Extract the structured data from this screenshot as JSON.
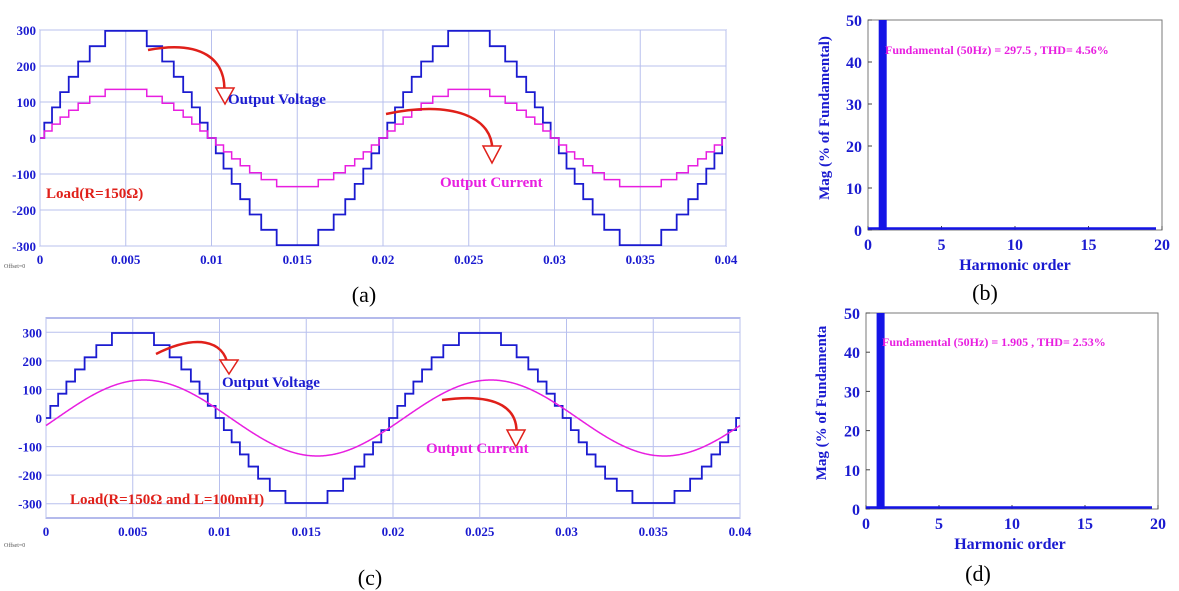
{
  "captions": [
    "(a)",
    "(b)",
    "(c)",
    "(d)"
  ],
  "colors": {
    "voltage": "#1b1bd0",
    "current": "#e81ee0",
    "arrow": "#e0201a",
    "axis_text": "#1a1ad0",
    "grid": "#b8c0ee",
    "spectrum": "#1414e6"
  },
  "chart_data": [
    {
      "id": "a",
      "type": "line",
      "x_ticks": [
        "0",
        "0.005",
        "0.01",
        "0.015",
        "0.02",
        "0.025",
        "0.03",
        "0.035",
        "0.04"
      ],
      "y_ticks": [
        "300",
        "200",
        "100",
        "0",
        "-100",
        "-200",
        "-300"
      ],
      "xlim": [
        0,
        0.04
      ],
      "ylim": [
        -300,
        300
      ],
      "offset_label": "Offset=0",
      "series": [
        {
          "name": "Output Voltage",
          "waveform": "staircase sine",
          "amplitude": 297.5,
          "frequency_hz": 50,
          "levels": 15
        },
        {
          "name": "Output Current",
          "waveform": "staircase sine",
          "amplitude": 135,
          "frequency_hz": 50,
          "levels": 15
        }
      ],
      "annotations": [
        "Output Voltage",
        "Output Current",
        "Load(R=150Ω)"
      ]
    },
    {
      "id": "b",
      "type": "bar",
      "xlabel": "Harmonic order",
      "ylabel": "Mag (% of Fundamental)",
      "x_ticks": [
        "0",
        "5",
        "10",
        "15",
        "20"
      ],
      "y_ticks": [
        "50",
        "40",
        "30",
        "20",
        "10",
        "0"
      ],
      "xlim": [
        0,
        20
      ],
      "ylim": [
        0,
        50
      ],
      "bars": [
        {
          "harmonic": 1,
          "value": 50
        }
      ],
      "annotation": "Fundamental (50Hz) = 297.5 , THD= 4.56%"
    },
    {
      "id": "c",
      "type": "line",
      "x_ticks": [
        "0",
        "0.005",
        "0.01",
        "0.015",
        "0.02",
        "0.025",
        "0.03",
        "0.035",
        "0.04"
      ],
      "y_ticks": [
        "300",
        "200",
        "100",
        "0",
        "-100",
        "-200",
        "-300"
      ],
      "xlim": [
        0,
        0.04
      ],
      "ylim": [
        -350,
        350
      ],
      "offset_label": "Offset=0",
      "series": [
        {
          "name": "Output Voltage",
          "waveform": "staircase sine",
          "amplitude": 297.5,
          "frequency_hz": 50,
          "levels": 15
        },
        {
          "name": "Output Current",
          "waveform": "sine",
          "amplitude": 133,
          "frequency_hz": 50
        }
      ],
      "annotations": [
        "Output Voltage",
        "Output Current",
        "Load(R=150Ω and L=100mH)"
      ]
    },
    {
      "id": "d",
      "type": "bar",
      "xlabel": "Harmonic order",
      "ylabel": "Mag (% of Fundamenta",
      "x_ticks": [
        "0",
        "5",
        "10",
        "15",
        "20"
      ],
      "y_ticks": [
        "50",
        "40",
        "30",
        "20",
        "10",
        "0"
      ],
      "xlim": [
        0,
        20
      ],
      "ylim": [
        0,
        50
      ],
      "bars": [
        {
          "harmonic": 1,
          "value": 50
        }
      ],
      "annotation": "Fundamental (50Hz) = 1.905 , THD= 2.53%"
    }
  ]
}
